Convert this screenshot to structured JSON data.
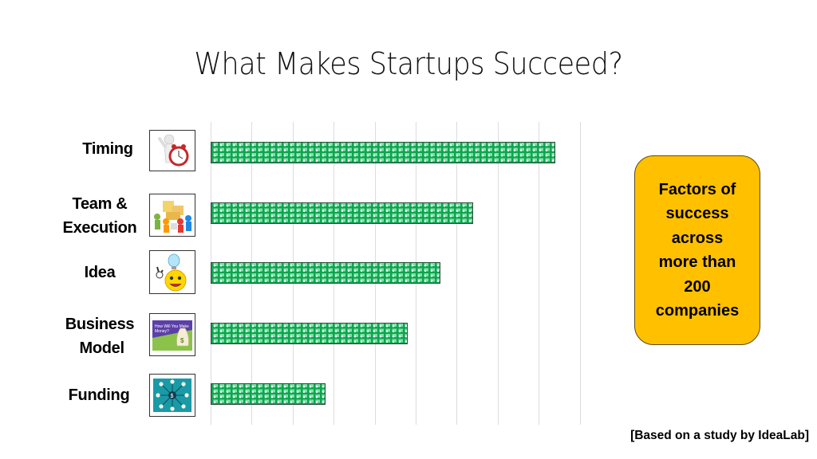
{
  "title": "What Makes Startups Succeed?",
  "callout": {
    "lines": [
      "Factors of",
      "success",
      "across",
      "more than",
      "200",
      "companies"
    ],
    "color": "#ffc000"
  },
  "source": "[Based on a study by IdeaLab]",
  "icons": [
    {
      "name": "timing-clock-icon"
    },
    {
      "name": "team-puzzle-icon"
    },
    {
      "name": "idea-lightbulb-icon"
    },
    {
      "name": "business-model-money-bag-icon"
    },
    {
      "name": "funding-network-icon"
    }
  ],
  "bar_color": "#0fa44f",
  "chart_data": {
    "type": "bar",
    "orientation": "horizontal",
    "title": "What Makes Startups Succeed?",
    "categories": [
      "Timing",
      "Team & Execution",
      "Idea",
      "Business Model",
      "Funding"
    ],
    "values": [
      42,
      32,
      28,
      24,
      14
    ],
    "unit": "%",
    "xlabel": "",
    "ylabel": "",
    "xlim": [
      0,
      45
    ],
    "grid": {
      "vertical": true,
      "step": 5
    },
    "tick_labels_visible": false,
    "legend": null,
    "annotation": "Factors of success across more than 200 companies",
    "source": "[Based on a study by IdeaLab]"
  }
}
